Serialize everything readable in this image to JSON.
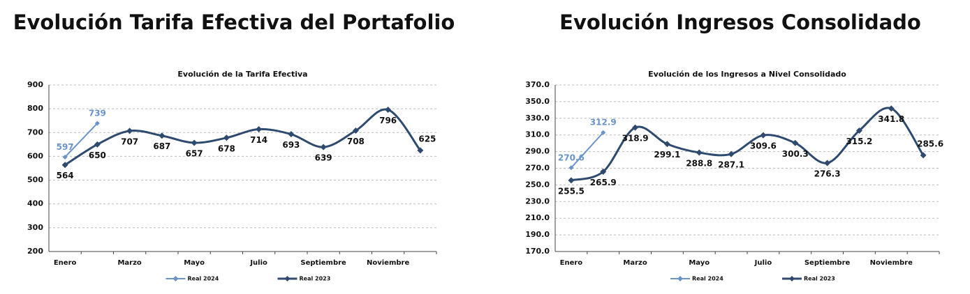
{
  "chart_data": [
    {
      "type": "line",
      "heading": "Evolución Tarifa Efectiva del Portafolio",
      "title": "Evolución de la Tarifa Efectiva",
      "categories": [
        "Enero",
        null,
        "Marzo",
        null,
        "Mayo",
        null,
        "Julio",
        null,
        "Septiembre",
        null,
        "Noviembre",
        null
      ],
      "ylim": [
        200,
        900
      ],
      "yticks": [
        200,
        300,
        400,
        500,
        600,
        700,
        800,
        900
      ],
      "grid": true,
      "legend": "bottom",
      "series": [
        {
          "name": "Real 2024",
          "color": "#6a93c8",
          "values": [
            597,
            739,
            null,
            null,
            null,
            null,
            null,
            null,
            null,
            null,
            null,
            null
          ]
        },
        {
          "name": "Real 2023",
          "color": "#2e4a6e",
          "values": [
            564,
            650,
            707,
            687,
            657,
            678,
            714,
            693,
            639,
            708,
            796,
            625
          ]
        }
      ]
    },
    {
      "type": "line",
      "heading": "Evolución Ingresos Consolidado",
      "title": "Evolución de los Ingresos a Nivel Consolidado",
      "categories": [
        "Enero",
        null,
        "Marzo",
        null,
        "Mayo",
        null,
        "Julio",
        null,
        "Septiembre",
        null,
        "Noviembre",
        null
      ],
      "ylim": [
        170,
        370
      ],
      "yticks": [
        {
          "value": 170,
          "label": "170.0"
        },
        {
          "value": 190,
          "label": "190.0"
        },
        {
          "value": 210,
          "label": "210.0"
        },
        {
          "value": 230,
          "label": "230.0"
        },
        {
          "value": 250,
          "label": "250.0"
        },
        {
          "value": 270,
          "label": "270.0"
        },
        {
          "value": 290,
          "label": "290.0"
        },
        {
          "value": 310,
          "label": "310.0"
        },
        {
          "value": 330,
          "label": "330.0"
        },
        {
          "value": 350,
          "label": "350.0"
        },
        {
          "value": 370,
          "label": "370.0"
        }
      ],
      "grid": true,
      "legend": "bottom",
      "series": [
        {
          "name": "Real 2024",
          "color": "#6a93c8",
          "values": [
            270.6,
            312.9,
            null,
            null,
            null,
            null,
            null,
            null,
            null,
            null,
            null,
            null
          ]
        },
        {
          "name": "Real 2023",
          "color": "#2e4a6e",
          "values": [
            255.5,
            265.9,
            318.9,
            299.1,
            288.8,
            287.1,
            309.6,
            300.3,
            276.3,
            315.2,
            341.8,
            285.6
          ]
        }
      ]
    }
  ]
}
